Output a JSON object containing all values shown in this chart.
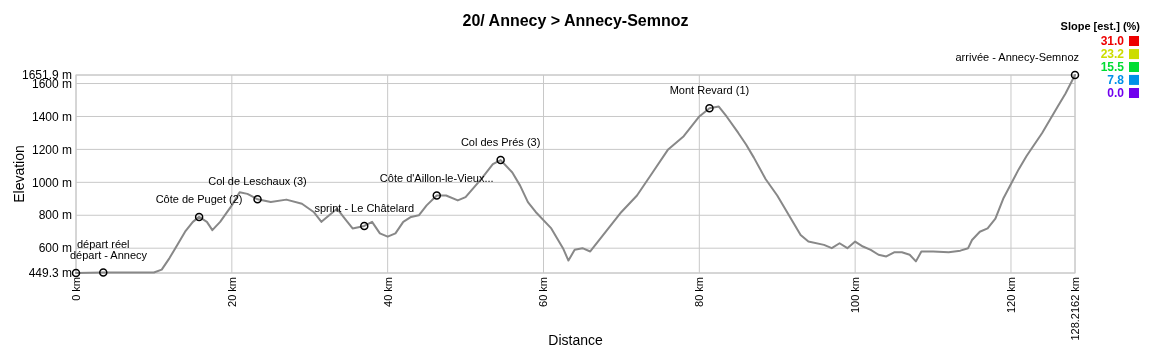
{
  "chart_data": {
    "type": "line",
    "title": "20/ Annecy > Annecy-Semnoz",
    "xlabel": "Distance",
    "ylabel": "Elevation",
    "clabel": "Slope [est.] (%)",
    "clim": [
      0,
      31
    ],
    "cticks": [
      {
        "value": 0,
        "label": "0.0"
      },
      {
        "value": 7.8,
        "label": "7.8"
      },
      {
        "value": 15.5,
        "label": "15.5"
      },
      {
        "value": 23.2,
        "label": "23.2"
      },
      {
        "value": 31,
        "label": "31.0"
      }
    ],
    "colors": [
      "#7000ee",
      "#0090e8",
      "#00dd33",
      "#ccdd00",
      "#ee0000"
    ],
    "xlim": [
      0,
      128.2162
    ],
    "xticks": [
      {
        "value": 0,
        "label": "0 km"
      },
      {
        "value": 20,
        "label": "20 km"
      },
      {
        "value": 40,
        "label": "40 km"
      },
      {
        "value": 60,
        "label": "60 km"
      },
      {
        "value": 80,
        "label": "80 km"
      },
      {
        "value": 100,
        "label": "100 km"
      },
      {
        "value": 120,
        "label": "120 km"
      },
      {
        "value": 128.2162,
        "label": "128.2162 km"
      }
    ],
    "ylim": [
      449.3,
      1651.9
    ],
    "yticks": [
      {
        "value": 449.3,
        "label": "449.3 m"
      },
      {
        "value": 600,
        "label": "600 m"
      },
      {
        "value": 800,
        "label": "800 m"
      },
      {
        "value": 1000,
        "label": "1000 m"
      },
      {
        "value": 1200,
        "label": "1200 m"
      },
      {
        "value": 1400,
        "label": "1400 m"
      },
      {
        "value": 1600,
        "label": "1600 m"
      },
      {
        "value": 1651.9,
        "label": "1651.9 m"
      }
    ],
    "grid": true,
    "series": [
      {
        "color": "#888888",
        "x": [
          0,
          3.5,
          10,
          11,
          12,
          13,
          14,
          15,
          15.8,
          16.8,
          17.5,
          18.5,
          20,
          21,
          22,
          23.3,
          25,
          27,
          29,
          30.5,
          31.5,
          32.5,
          33.5,
          34.5,
          35.5,
          37,
          38,
          39,
          40,
          41,
          42,
          43,
          44,
          45,
          46.3,
          47.5,
          49,
          50,
          52,
          53.5,
          54.5,
          56,
          57,
          58,
          59,
          61,
          62.5,
          63.2,
          64,
          65,
          66,
          68,
          70,
          72,
          74,
          76,
          78,
          80,
          81.3,
          82.5,
          83.5,
          85,
          86,
          87,
          88.5,
          90,
          91.5,
          93,
          94,
          96,
          97,
          98,
          99,
          100,
          101,
          102,
          103,
          104,
          105,
          106,
          107,
          107.8,
          108.5,
          110,
          112,
          113.5,
          114.5,
          115,
          116,
          117,
          118,
          119,
          120,
          121,
          122,
          124,
          126,
          127,
          128.2162
        ],
        "values": [
          449.3,
          452,
          452,
          470,
          540,
          620,
          700,
          760,
          790,
          760,
          710,
          760,
          860,
          940,
          930,
          897,
          880,
          895,
          870,
          820,
          760,
          800,
          840,
          780,
          720,
          735,
          760,
          690,
          670,
          690,
          760,
          790,
          800,
          860,
          920,
          920,
          890,
          910,
          1020,
          1110,
          1135,
          1060,
          980,
          880,
          820,
          720,
          600,
          525,
          590,
          600,
          580,
          700,
          820,
          920,
          1060,
          1200,
          1280,
          1400,
          1450,
          1460,
          1400,
          1300,
          1230,
          1150,
          1020,
          920,
          800,
          680,
          640,
          620,
          600,
          630,
          600,
          640,
          610,
          590,
          560,
          550,
          575,
          575,
          560,
          520,
          580,
          580,
          575,
          585,
          600,
          650,
          700,
          720,
          780,
          900,
          990,
          1080,
          1160,
          1300,
          1460,
          1540,
          1651.9
        ]
      }
    ],
    "annotations": [
      {
        "text": "départ - Annecy",
        "x": 0,
        "y": 449.3
      },
      {
        "text": "départ réel",
        "x": 3.5,
        "y": 452
      },
      {
        "text": "Côte de Puget (2)",
        "x": 15.8,
        "y": 790
      },
      {
        "text": "Col de Leschaux (3)",
        "x": 23.3,
        "y": 897
      },
      {
        "text": "sprint - Le Châtelard",
        "x": 37,
        "y": 735
      },
      {
        "text": "Côte d'Aillon-le-Vieux...",
        "x": 46.3,
        "y": 920
      },
      {
        "text": "Col des Prés (3)",
        "x": 54.5,
        "y": 1135
      },
      {
        "text": "Mont Revard (1)",
        "x": 81.3,
        "y": 1450
      },
      {
        "text": "arrivée - Annecy-Semnoz",
        "x": 128.2162,
        "y": 1651.9
      }
    ]
  }
}
